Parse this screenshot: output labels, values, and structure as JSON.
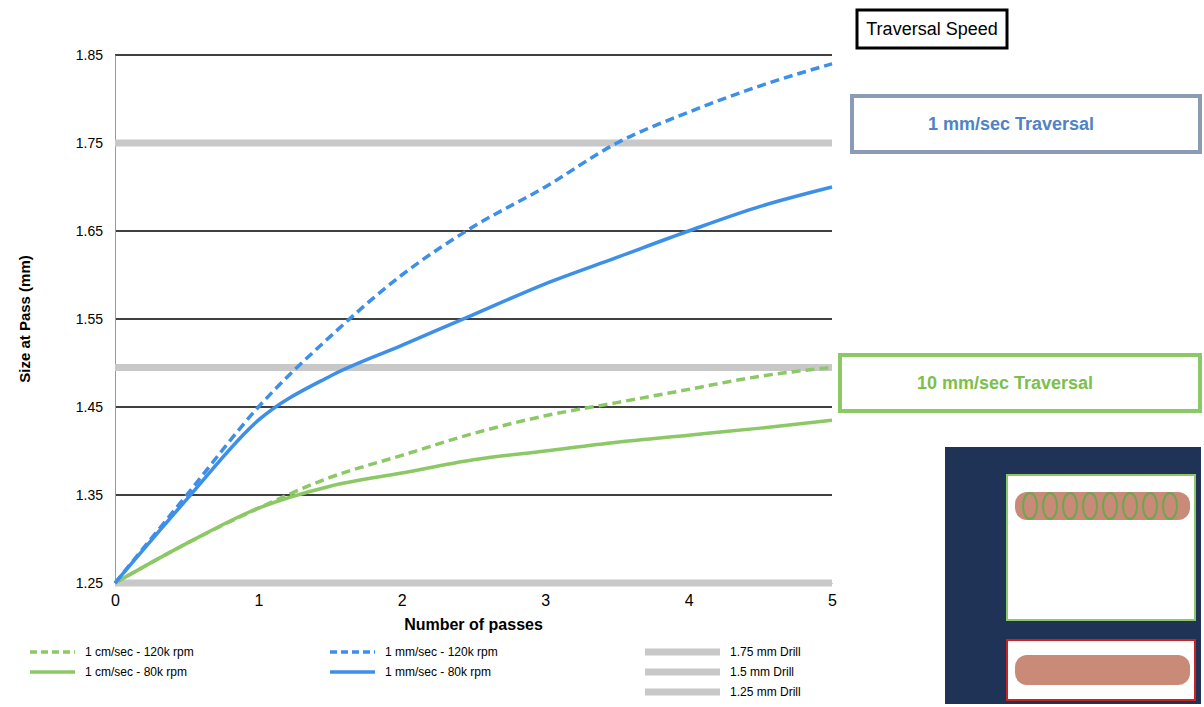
{
  "chart_data": {
    "type": "line",
    "x_label": "Number of passes",
    "y_label": "Size at Pass (mm)",
    "x": [
      0,
      0.5,
      1,
      1.5,
      2,
      2.5,
      3,
      3.5,
      4,
      4.5,
      5
    ],
    "xlim": [
      0,
      5
    ],
    "xticks": [
      0,
      1,
      2,
      3,
      4,
      5
    ],
    "ylim": [
      1.25,
      1.85
    ],
    "yticks": [
      1.25,
      1.35,
      1.45,
      1.55,
      1.65,
      1.75,
      1.85
    ],
    "grid": true,
    "legend": "bottom",
    "series": [
      {
        "name": "1 cm/sec - 120k rpm",
        "color": "#8cc866",
        "line_style": "dashed",
        "values": [
          1.25,
          1.295,
          1.335,
          1.37,
          1.395,
          1.42,
          1.44,
          1.455,
          1.47,
          1.485,
          1.495
        ]
      },
      {
        "name": "1 cm/sec - 80k rpm",
        "color": "#8cc866",
        "line_style": "solid",
        "values": [
          1.25,
          1.295,
          1.335,
          1.36,
          1.375,
          1.39,
          1.4,
          1.41,
          1.418,
          1.426,
          1.435
        ]
      },
      {
        "name": "1 mm/sec - 120k rpm",
        "color": "#3d8fe8",
        "line_style": "dashed",
        "values": [
          1.25,
          1.35,
          1.45,
          1.53,
          1.6,
          1.655,
          1.7,
          1.75,
          1.785,
          1.815,
          1.84
        ]
      },
      {
        "name": "1 mm/sec - 80k rpm",
        "color": "#3d8fe8",
        "line_style": "solid",
        "values": [
          1.25,
          1.345,
          1.435,
          1.485,
          1.52,
          1.555,
          1.59,
          1.62,
          1.65,
          1.678,
          1.7
        ]
      }
    ],
    "reference_lines": [
      {
        "name": "1.75 mm Drill",
        "value": 1.75,
        "color": "#c8c8c8"
      },
      {
        "name": "1.5 mm Drill",
        "value": 1.495,
        "color": "#c8c8c8"
      },
      {
        "name": "1.25 mm Drill",
        "value": 1.25,
        "color": "#c8c8c8"
      }
    ],
    "annotations": [
      {
        "text": "Traversal Speed",
        "color": "#000000"
      },
      {
        "text": "1 mm/sec Traversal",
        "color": "#4f83c6"
      },
      {
        "text": "10 mm/sec Traversal",
        "color": "#7cbf4a"
      }
    ]
  }
}
